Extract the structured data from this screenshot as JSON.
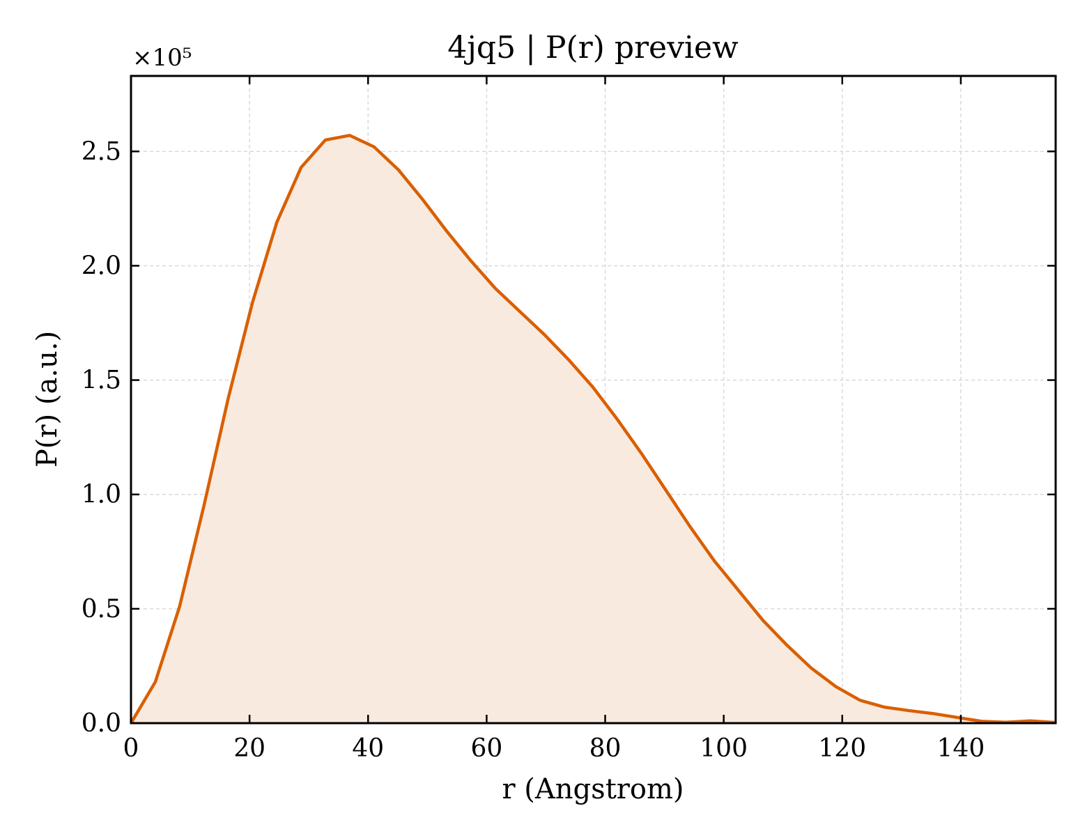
{
  "chart_data": {
    "type": "area",
    "title": "4jq5 | P(r) preview",
    "xlabel": "r (Angstrom)",
    "ylabel": "P(r) (a.u.)",
    "y_multiplier": "×10⁵",
    "xlim": [
      0,
      156
    ],
    "ylim": [
      0,
      2.83
    ],
    "xticks": [
      0,
      20,
      40,
      60,
      80,
      100,
      120,
      140
    ],
    "yticks": [
      0.0,
      0.5,
      1.0,
      1.5,
      2.0,
      2.5
    ],
    "xtick_labels": [
      "0",
      "20",
      "40",
      "60",
      "80",
      "100",
      "120",
      "140"
    ],
    "ytick_labels": [
      "0.0",
      "0.5",
      "1.0",
      "1.5",
      "2.0",
      "2.5"
    ],
    "grid": true,
    "line_color": "#d95f02",
    "fill_color": "#f9eadf",
    "series": [
      {
        "x": [
          0,
          4.1,
          8.2,
          12.3,
          16.4,
          20.5,
          24.6,
          28.7,
          32.8,
          36.9,
          41.0,
          45.1,
          49.2,
          53.3,
          57.4,
          61.5,
          65.6,
          69.7,
          73.8,
          77.9,
          82.0,
          86.1,
          90.2,
          94.3,
          98.4,
          102.5,
          106.6,
          110.7,
          114.8,
          118.9,
          123.0,
          127.1,
          131.2,
          135.3,
          139.4,
          143.5,
          147.6,
          151.7,
          155.8
        ],
        "values": [
          0.0,
          0.18,
          0.51,
          0.95,
          1.42,
          1.84,
          2.19,
          2.43,
          2.55,
          2.57,
          2.52,
          2.42,
          2.29,
          2.15,
          2.02,
          1.9,
          1.8,
          1.7,
          1.59,
          1.47,
          1.33,
          1.18,
          1.02,
          0.86,
          0.71,
          0.58,
          0.45,
          0.34,
          0.24,
          0.16,
          0.1,
          0.07,
          0.055,
          0.042,
          0.025,
          0.008,
          0.004,
          0.01,
          0.003
        ]
      }
    ]
  }
}
